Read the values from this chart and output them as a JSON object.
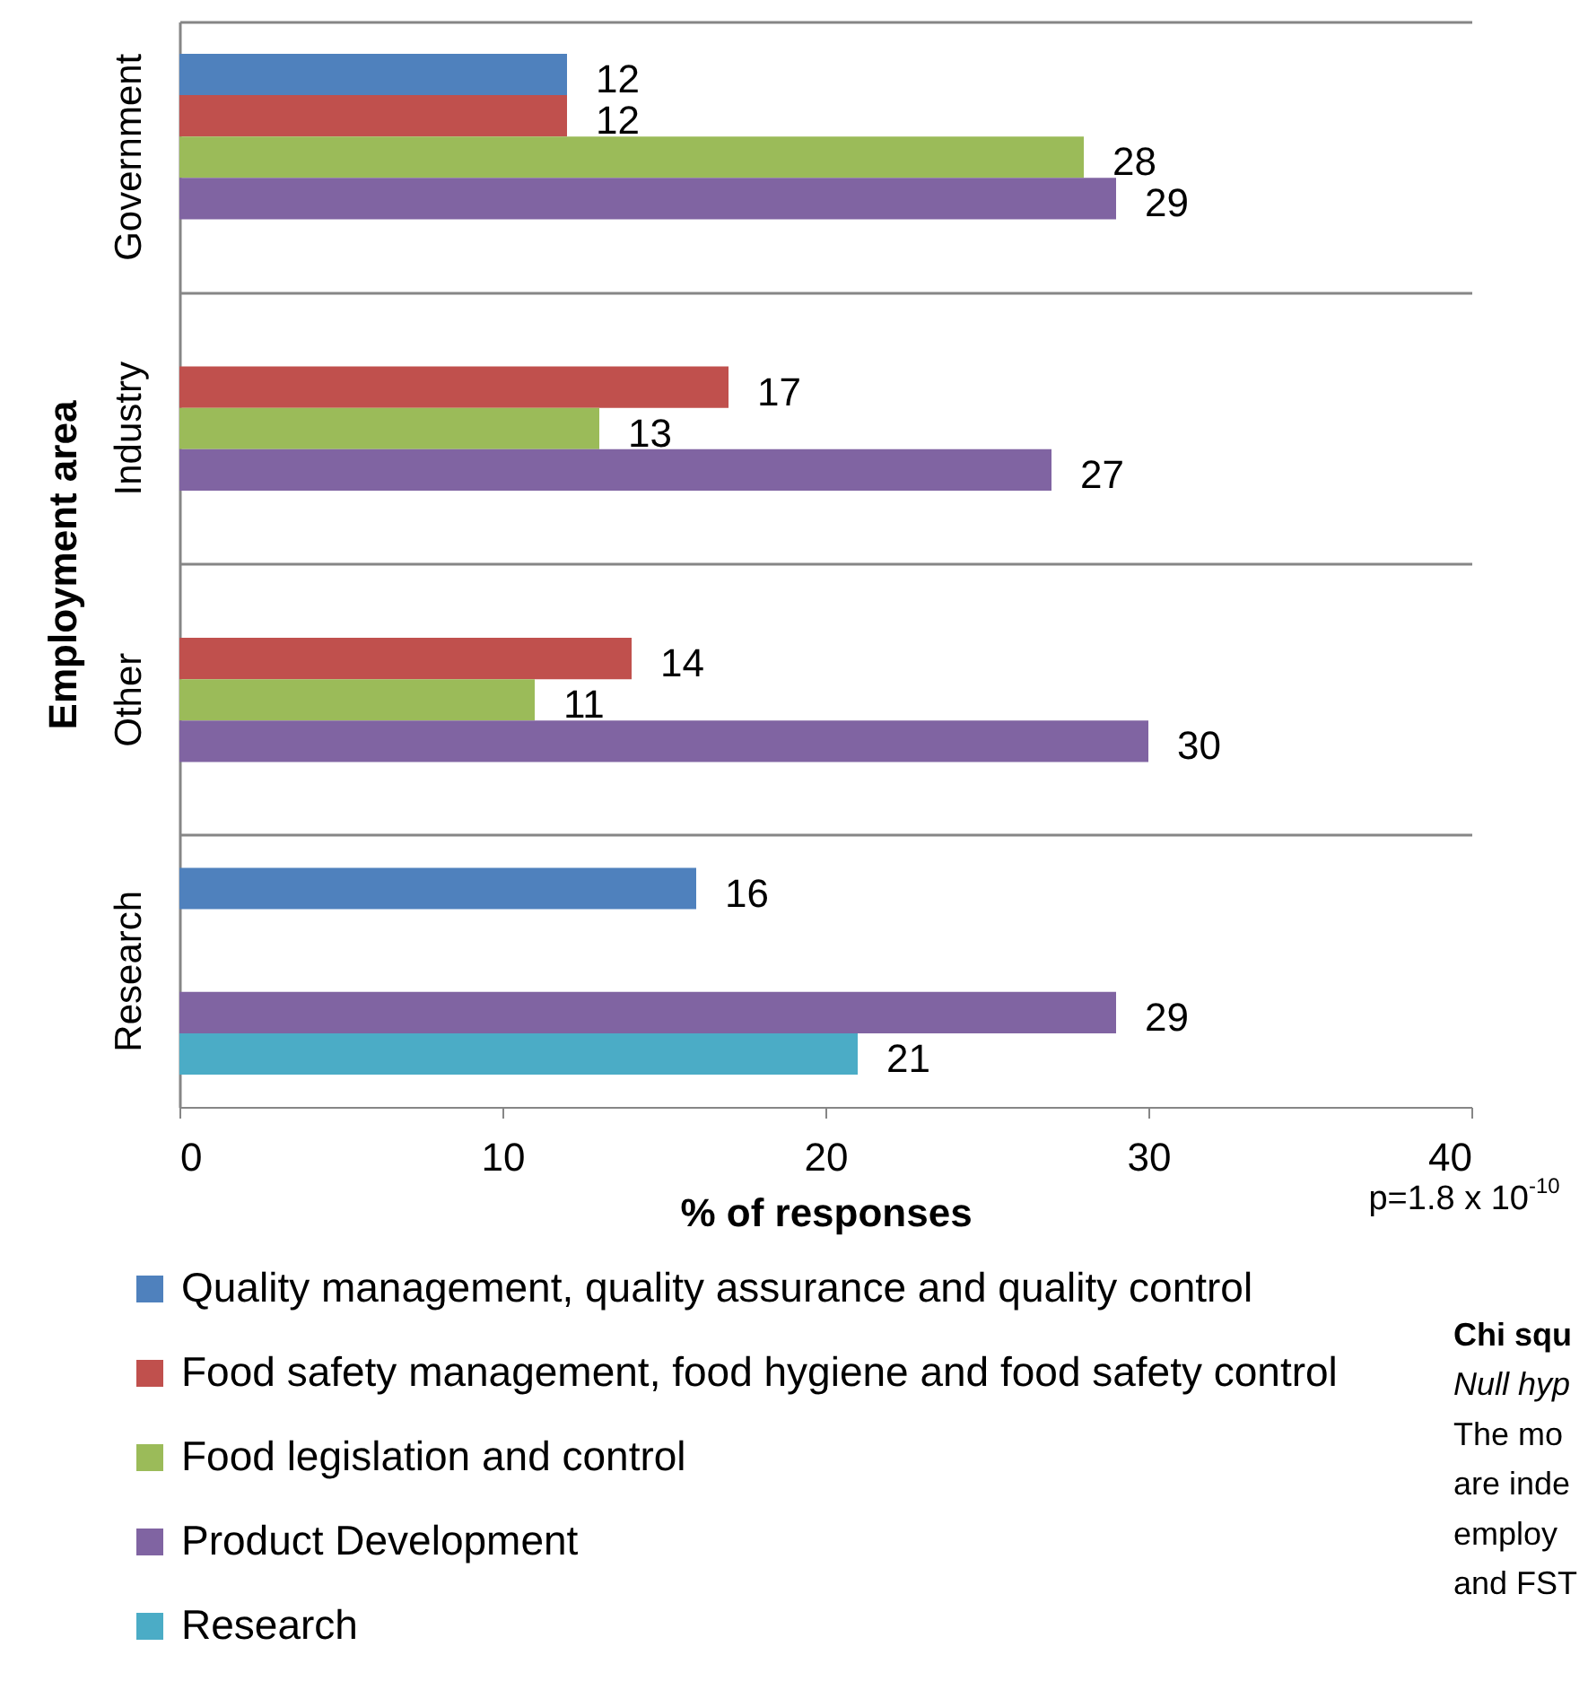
{
  "chart_data": {
    "type": "bar",
    "orientation": "horizontal",
    "xlabel": "% of responses",
    "ylabel": "Employment area",
    "categories": [
      "Government",
      "Industry",
      "Other",
      "Research"
    ],
    "series": [
      {
        "name": "Quality management, quality assurance and quality control",
        "color": "#4f81bd",
        "values": [
          12,
          null,
          null,
          16
        ]
      },
      {
        "name": "Food safety management, food hygiene and food safety control",
        "color": "#c0504d",
        "values": [
          12,
          17,
          14,
          null
        ]
      },
      {
        "name": "Food legislation and control",
        "color": "#9bbb59",
        "values": [
          28,
          13,
          11,
          null
        ]
      },
      {
        "name": "Product Development",
        "color": "#8064a2",
        "values": [
          29,
          27,
          30,
          29
        ]
      },
      {
        "name": "Research",
        "color": "#4bacc6",
        "values": [
          null,
          null,
          null,
          21
        ]
      }
    ],
    "xlim": [
      0,
      40
    ],
    "xticks": [
      0,
      10,
      20,
      30,
      40
    ],
    "grid": "y",
    "legend": "bottom",
    "data_labels": true,
    "annotations": [
      "p=1.8 x 10$^{-10}$",
      "Chi squ",
      "Null hyp",
      "The mo",
      "are inde",
      "employ",
      "and FST"
    ]
  }
}
